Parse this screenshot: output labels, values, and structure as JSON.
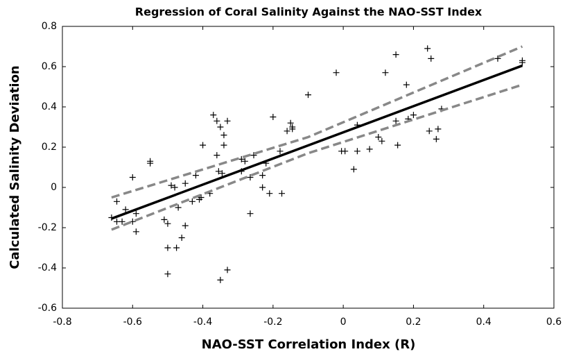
{
  "chart_data": {
    "type": "scatter",
    "title": "Regression of Coral Salinity Against the NAO-SST Index",
    "x_label": "NAO-SST Correlation Index (R)",
    "y_label": "Calculated Salinity Deviation",
    "xlim": [
      -0.8,
      0.6
    ],
    "xticks": [
      -0.8,
      -0.6,
      -0.4,
      -0.2,
      0,
      0.2,
      0.4,
      0.6
    ],
    "ylim": [
      -0.6,
      0.8
    ],
    "yticks": [
      -0.6,
      -0.4,
      -0.2,
      0,
      0.2,
      0.4,
      0.6,
      0.8
    ],
    "series": [
      {
        "type": "scatter",
        "marker": "+",
        "color": "#000000",
        "x": [
          -0.66,
          -0.645,
          -0.645,
          -0.63,
          -0.62,
          -0.6,
          -0.59,
          -0.59,
          -0.6,
          -0.55,
          -0.55,
          -0.51,
          -0.5,
          -0.5,
          -0.5,
          -0.49,
          -0.48,
          -0.475,
          -0.47,
          -0.46,
          -0.45,
          -0.45,
          -0.43,
          -0.42,
          -0.41,
          -0.405,
          -0.4,
          -0.38,
          -0.37,
          -0.36,
          -0.36,
          -0.355,
          -0.35,
          -0.345,
          -0.34,
          -0.34,
          -0.35,
          -0.33,
          -0.33,
          -0.29,
          -0.29,
          -0.28,
          -0.265,
          -0.265,
          -0.255,
          -0.23,
          -0.23,
          -0.22,
          -0.21,
          -0.2,
          -0.18,
          -0.175,
          -0.16,
          -0.15,
          -0.145,
          -0.145,
          -0.1,
          -0.02,
          -0.005,
          0.005,
          0.03,
          0.04,
          0.04,
          0.075,
          0.1,
          0.11,
          0.12,
          0.15,
          0.15,
          0.155,
          0.18,
          0.185,
          0.2,
          0.24,
          0.245,
          0.25,
          0.265,
          0.27,
          0.28,
          0.44,
          0.51,
          0.51
        ],
        "values": [
          -0.15,
          -0.07,
          -0.17,
          -0.17,
          -0.11,
          -0.17,
          -0.13,
          -0.22,
          0.05,
          0.13,
          0.12,
          -0.16,
          -0.18,
          -0.3,
          -0.43,
          0.01,
          0.0,
          -0.3,
          -0.1,
          -0.25,
          -0.19,
          0.02,
          -0.07,
          0.06,
          -0.06,
          -0.05,
          0.21,
          -0.03,
          0.36,
          0.33,
          0.16,
          0.08,
          0.3,
          0.07,
          0.26,
          0.21,
          -0.46,
          0.33,
          -0.41,
          0.08,
          0.14,
          0.13,
          0.05,
          -0.13,
          0.16,
          0.06,
          0.0,
          0.12,
          -0.03,
          0.35,
          0.18,
          -0.03,
          0.28,
          0.32,
          0.3,
          0.29,
          0.46,
          0.57,
          0.18,
          0.18,
          0.09,
          0.31,
          0.18,
          0.19,
          0.25,
          0.23,
          0.57,
          0.33,
          0.66,
          0.21,
          0.51,
          0.34,
          0.36,
          0.69,
          0.28,
          0.64,
          0.24,
          0.29,
          0.39,
          0.64,
          0.63,
          0.62
        ]
      },
      {
        "type": "line",
        "color": "#000000",
        "width": 3.5,
        "dashed": false,
        "x": [
          -0.66,
          0.51
        ],
        "values": [
          -0.155,
          0.605
        ]
      },
      {
        "type": "line",
        "color": "#888888",
        "width": 3.5,
        "dashed": true,
        "x": [
          -0.66,
          -0.1,
          0.51
        ],
        "values": [
          -0.05,
          0.25,
          0.7
        ]
      },
      {
        "type": "line",
        "color": "#888888",
        "width": 3.5,
        "dashed": true,
        "x": [
          -0.66,
          -0.1,
          0.51
        ],
        "values": [
          -0.21,
          0.17,
          0.51
        ]
      }
    ]
  }
}
